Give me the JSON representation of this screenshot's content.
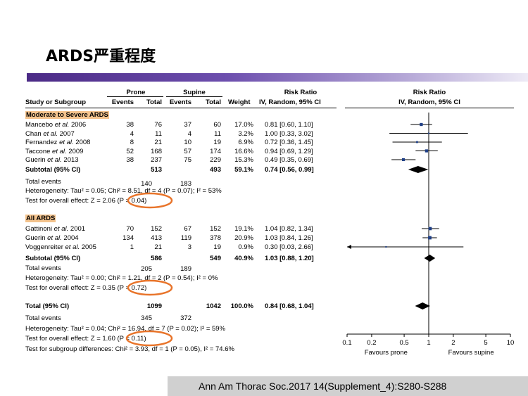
{
  "slide": {
    "title": "ARDS严重程度",
    "citation": "Ann Am Thorac Soc.2017 14(Supplement_4):S280-S288"
  },
  "headers": {
    "study": "Study or Subgroup",
    "prone": "Prone",
    "supine": "Supine",
    "events": "Events",
    "total": "Total",
    "weight": "Weight",
    "risk_ratio": "Risk Ratio",
    "method": "IV, Random, 95% CI"
  },
  "subgroup1": {
    "label": "Moderate to Severe ARDS",
    "studies": [
      {
        "name": "Mancebo et al. 2006",
        "pe": "38",
        "pt": "76",
        "se": "37",
        "st": "60",
        "w": "17.0%",
        "rr": "0.81 [0.60, 1.10]"
      },
      {
        "name": "Chan et al. 2007",
        "pe": "4",
        "pt": "11",
        "se": "4",
        "st": "11",
        "w": "3.2%",
        "rr": "1.00 [0.33, 3.02]"
      },
      {
        "name": "Fernandez et al. 2008",
        "pe": "8",
        "pt": "21",
        "se": "10",
        "st": "19",
        "w": "6.9%",
        "rr": "0.72 [0.36, 1.45]"
      },
      {
        "name": "Taccone et al. 2009",
        "pe": "52",
        "pt": "168",
        "se": "57",
        "st": "174",
        "w": "16.6%",
        "rr": "0.94 [0.69, 1.29]"
      },
      {
        "name": "Guerin et al. 2013",
        "pe": "38",
        "pt": "237",
        "se": "75",
        "st": "229",
        "w": "15.3%",
        "rr": "0.49 [0.35, 0.69]"
      }
    ],
    "subtotal": {
      "label": "Subtotal (95% CI)",
      "pt": "513",
      "st": "493",
      "w": "59.1%",
      "rr": "0.74 [0.56, 0.99]"
    },
    "total_events": {
      "label": "Total events",
      "pe": "140",
      "se": "183"
    },
    "heterogeneity": "Heterogeneity: Tau² = 0.05; Chi² = 8.51, df = 4 (P = 0.07); I² = 53%",
    "overall": "Test for overall effect: Z = 2.06 (P = 0.04)"
  },
  "subgroup2": {
    "label": "All ARDS",
    "studies": [
      {
        "name": "Gattinoni et al. 2001",
        "pe": "70",
        "pt": "152",
        "se": "67",
        "st": "152",
        "w": "19.1%",
        "rr": "1.04 [0.82, 1.34]"
      },
      {
        "name": "Guerin et al. 2004",
        "pe": "134",
        "pt": "413",
        "se": "119",
        "st": "378",
        "w": "20.9%",
        "rr": "1.03 [0.84, 1.26]"
      },
      {
        "name": "Voggenreiter et al. 2005",
        "pe": "1",
        "pt": "21",
        "se": "3",
        "st": "19",
        "w": "0.9%",
        "rr": "0.30 [0.03, 2.66]"
      }
    ],
    "subtotal": {
      "label": "Subtotal (95% CI)",
      "pt": "586",
      "st": "549",
      "w": "40.9%",
      "rr": "1.03 [0.88, 1.20]"
    },
    "total_events": {
      "label": "Total events",
      "pe": "205",
      "se": "189"
    },
    "heterogeneity": "Heterogeneity: Tau² = 0.00; Chi² = 1.21, df = 2 (P = 0.54); I² = 0%",
    "overall": "Test for overall effect: Z = 0.35 (P = 0.72)"
  },
  "total": {
    "label": "Total (95% CI)",
    "pt": "1099",
    "st": "1042",
    "w": "100.0%",
    "rr": "0.84 [0.68, 1.04]",
    "total_events": {
      "label": "Total events",
      "pe": "345",
      "se": "372"
    },
    "heterogeneity": "Heterogeneity: Tau² = 0.04; Chi² = 16.94, df = 7 (P = 0.02); I² = 59%",
    "overall": "Test for overall effect: Z = 1.60 (P = 0.11)",
    "subgroup_diff": "Test for subgroup differences: Chi² = 3.93, df = 1 (P = 0.05), I² = 74.6%"
  },
  "highlight_color": "#e8742a",
  "chart_data": {
    "type": "scatter",
    "title": "Risk Ratio",
    "subtitle": "IV, Random, 95% CI",
    "scale": "log",
    "xlim": [
      0.1,
      10
    ],
    "ticks": [
      "0.1",
      "0.2",
      "0.5",
      "1",
      "2",
      "5",
      "10"
    ],
    "xlabel_left": "Favours prone",
    "xlabel_right": "Favours supine",
    "reference_line": 1,
    "studies": [
      {
        "est": 0.81,
        "lo": 0.6,
        "hi": 1.1,
        "weight": 17.0
      },
      {
        "est": 1.0,
        "lo": 0.33,
        "hi": 3.02,
        "weight": 3.2
      },
      {
        "est": 0.72,
        "lo": 0.36,
        "hi": 1.45,
        "weight": 6.9
      },
      {
        "est": 0.94,
        "lo": 0.69,
        "hi": 1.29,
        "weight": 16.6
      },
      {
        "est": 0.49,
        "lo": 0.35,
        "hi": 0.69,
        "weight": 15.3
      },
      {
        "est": 1.04,
        "lo": 0.82,
        "hi": 1.34,
        "weight": 19.1
      },
      {
        "est": 1.03,
        "lo": 0.84,
        "hi": 1.26,
        "weight": 20.9
      },
      {
        "est": 0.3,
        "lo": 0.03,
        "hi": 2.66,
        "weight": 0.9,
        "arrow_left": true
      }
    ],
    "diamonds": [
      {
        "label": "Subtotal Moderate to Severe ARDS",
        "est": 0.74,
        "lo": 0.56,
        "hi": 0.99
      },
      {
        "label": "Subtotal All ARDS",
        "est": 1.03,
        "lo": 0.88,
        "hi": 1.2
      },
      {
        "label": "Total",
        "est": 0.84,
        "lo": 0.68,
        "hi": 1.04
      }
    ],
    "marker_color": "#1f3f86"
  }
}
